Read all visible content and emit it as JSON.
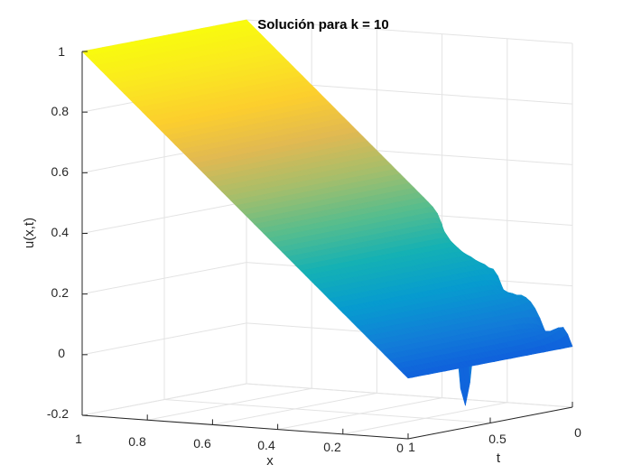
{
  "chart_data": {
    "type": "surface",
    "title": "Solución para k = 10",
    "xlabel": "x",
    "ylabel": "t",
    "zlabel": "u(x,t)",
    "xlim": [
      0,
      1
    ],
    "ylim": [
      0,
      1
    ],
    "zlim": [
      -0.2,
      1
    ],
    "x_ticks": [
      "1",
      "0.8",
      "0.6",
      "0.4",
      "0.2",
      "0"
    ],
    "t_ticks": [
      "1",
      "0.5",
      "0"
    ],
    "z_ticks": [
      "1",
      "0.8",
      "0.6",
      "0.4",
      "0.2",
      "0",
      "-0.2"
    ],
    "colormap": "parula",
    "grid": true,
    "initial_condition": "u(x,0) = x",
    "boundary_conditions": {
      "u(0,t)": 0,
      "u(1,t)": 1
    },
    "z_range_shown": [
      -0.13,
      1.0
    ]
  }
}
